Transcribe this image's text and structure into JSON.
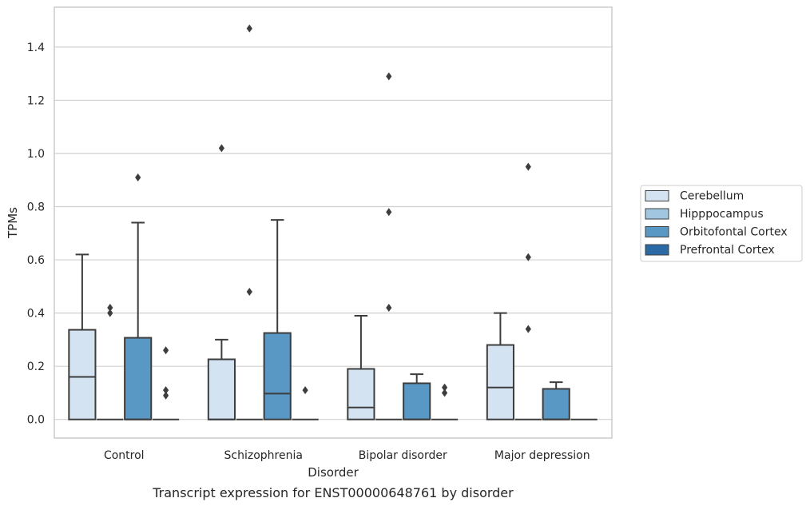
{
  "chart_data": {
    "type": "box",
    "caption": "Transcript expression for ENST00000648761 by disorder",
    "xlabel": "Disorder",
    "ylabel": "TPMs",
    "ylim": [
      -0.07,
      1.55
    ],
    "yticks": [
      0.0,
      0.2,
      0.4,
      0.6,
      0.8,
      1.0,
      1.2,
      1.4
    ],
    "ytick_labels": [
      "0.0",
      "0.2",
      "0.4",
      "0.6",
      "0.8",
      "1.0",
      "1.2",
      "1.4"
    ],
    "grid": "horizontal",
    "legend_position": "right",
    "categories": [
      "Control",
      "Schizophrenia",
      "Bipolar disorder",
      "Major depression"
    ],
    "series": [
      {
        "name": "Cerebellum",
        "color": "#d4e3f2",
        "boxes": [
          {
            "q1": 0.0,
            "median": 0.16,
            "q3": 0.337,
            "whisker_low": 0.0,
            "whisker_high": 0.62,
            "outliers": []
          },
          {
            "q1": 0.0,
            "median": 0.0,
            "q3": 0.226,
            "whisker_low": 0.0,
            "whisker_high": 0.3,
            "outliers": [
              1.02
            ]
          },
          {
            "q1": 0.0,
            "median": 0.045,
            "q3": 0.19,
            "whisker_low": 0.0,
            "whisker_high": 0.39,
            "outliers": []
          },
          {
            "q1": 0.0,
            "median": 0.12,
            "q3": 0.28,
            "whisker_low": 0.0,
            "whisker_high": 0.4,
            "outliers": []
          }
        ]
      },
      {
        "name": "Hipppocampus",
        "color": "#a1c6e0",
        "boxes": [
          {
            "q1": 0.0,
            "median": 0.0,
            "q3": 0.0,
            "whisker_low": 0.0,
            "whisker_high": 0.0,
            "outliers": [
              0.4,
              0.42
            ]
          },
          {
            "q1": 0.0,
            "median": 0.0,
            "q3": 0.0,
            "whisker_low": 0.0,
            "whisker_high": 0.0,
            "outliers": [
              0.48,
              1.47
            ]
          },
          {
            "q1": 0.0,
            "median": 0.0,
            "q3": 0.0,
            "whisker_low": 0.0,
            "whisker_high": 0.0,
            "outliers": [
              0.42,
              0.78,
              1.29
            ]
          },
          {
            "q1": 0.0,
            "median": 0.0,
            "q3": 0.0,
            "whisker_low": 0.0,
            "whisker_high": 0.0,
            "outliers": [
              0.34,
              0.61,
              0.95
            ]
          }
        ]
      },
      {
        "name": "Orbitofontal Cortex",
        "color": "#5997c4",
        "boxes": [
          {
            "q1": 0.0,
            "median": 0.0,
            "q3": 0.307,
            "whisker_low": 0.0,
            "whisker_high": 0.74,
            "outliers": [
              0.91
            ]
          },
          {
            "q1": 0.0,
            "median": 0.097,
            "q3": 0.325,
            "whisker_low": 0.0,
            "whisker_high": 0.75,
            "outliers": []
          },
          {
            "q1": 0.0,
            "median": 0.0,
            "q3": 0.136,
            "whisker_low": 0.0,
            "whisker_high": 0.17,
            "outliers": []
          },
          {
            "q1": 0.0,
            "median": 0.0,
            "q3": 0.115,
            "whisker_low": 0.0,
            "whisker_high": 0.14,
            "outliers": []
          }
        ]
      },
      {
        "name": "Prefrontal Cortex",
        "color": "#2c6aa6",
        "boxes": [
          {
            "q1": 0.0,
            "median": 0.0,
            "q3": 0.0,
            "whisker_low": 0.0,
            "whisker_high": 0.0,
            "outliers": [
              0.09,
              0.11,
              0.26
            ]
          },
          {
            "q1": 0.0,
            "median": 0.0,
            "q3": 0.0,
            "whisker_low": 0.0,
            "whisker_high": 0.0,
            "outliers": [
              0.11
            ]
          },
          {
            "q1": 0.0,
            "median": 0.0,
            "q3": 0.0,
            "whisker_low": 0.0,
            "whisker_high": 0.0,
            "outliers": [
              0.1,
              0.12
            ]
          },
          {
            "q1": 0.0,
            "median": 0.0,
            "q3": 0.0,
            "whisker_low": 0.0,
            "whisker_high": 0.0,
            "outliers": []
          }
        ]
      }
    ]
  }
}
